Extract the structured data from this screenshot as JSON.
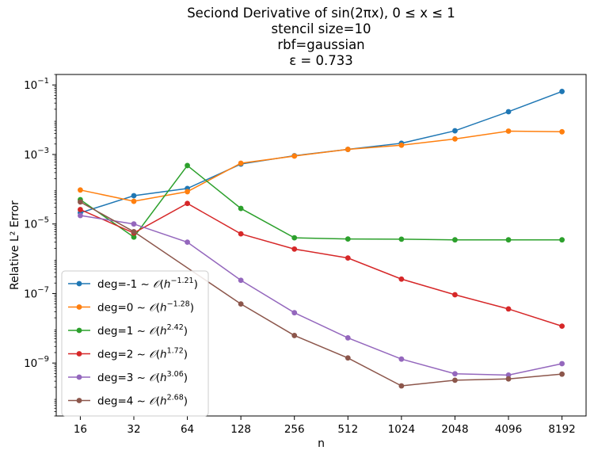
{
  "chart_data": {
    "type": "line",
    "title_lines": [
      "Seciond Derivative of sin(2πx), 0 ≤ x ≤ 1",
      "stencil size=10",
      "rbf=gaussian",
      "ε = 0.733"
    ],
    "xlabel": "n",
    "ylabel": "Relative L² Error",
    "x_scale": "log2",
    "y_scale": "log10",
    "x": [
      16,
      32,
      64,
      128,
      256,
      512,
      1024,
      2048,
      4096,
      8192
    ],
    "x_tick_labels": [
      "16",
      "32",
      "64",
      "128",
      "256",
      "512",
      "1024",
      "2048",
      "4096",
      "8192"
    ],
    "y_ticks": [
      {
        "value": 1e-09,
        "base": "10",
        "exp": "−9"
      },
      {
        "value": 1e-07,
        "base": "10",
        "exp": "−7"
      },
      {
        "value": 1e-05,
        "base": "10",
        "exp": "−5"
      },
      {
        "value": 0.001,
        "base": "10",
        "exp": "−3"
      },
      {
        "value": 0.1,
        "base": "10",
        "exp": "−1"
      }
    ],
    "ylim": [
      3e-11,
      0.2
    ],
    "grid": false,
    "legend_position": "lower-left",
    "series": [
      {
        "name": "deg=-1",
        "rate_base": "h",
        "rate_exp": "−1.21",
        "color": "#1f77b4",
        "values": [
          2.1e-05,
          6.5e-05,
          0.000105,
          0.00053,
          0.00092,
          0.0014,
          0.0021,
          0.0048,
          0.017,
          0.065
        ]
      },
      {
        "name": "deg=0",
        "rate_base": "h",
        "rate_exp": "−1.28",
        "color": "#ff7f0e",
        "values": [
          9.5e-05,
          4.5e-05,
          8.5e-05,
          0.00056,
          0.0009,
          0.0014,
          0.00185,
          0.0028,
          0.0047,
          0.0045
        ]
      },
      {
        "name": "deg=1",
        "rate_base": "h",
        "rate_exp": "2.42",
        "color": "#2ca02c",
        "values": [
          5e-05,
          4.2e-06,
          0.00048,
          2.8e-05,
          4e-06,
          3.7e-06,
          3.65e-06,
          3.5e-06,
          3.5e-06,
          3.5e-06
        ]
      },
      {
        "name": "deg=2",
        "rate_base": "h",
        "rate_exp": "1.72",
        "color": "#d62728",
        "values": [
          2.6e-05,
          5.5e-06,
          3.9e-05,
          5.2e-06,
          1.9e-06,
          1.05e-06,
          2.6e-07,
          9.2e-08,
          3.6e-08,
          1.15e-08
        ]
      },
      {
        "name": "deg=3",
        "rate_base": "h",
        "rate_exp": "3.06",
        "color": "#9467bd",
        "values": [
          1.75e-05,
          1e-05,
          3e-06,
          2.4e-07,
          2.8e-08,
          5.3e-09,
          1.3e-09,
          4.9e-10,
          4.5e-10,
          9.6e-10
        ]
      },
      {
        "name": "deg=4",
        "rate_base": "h",
        "rate_exp": "2.68",
        "color": "#8c564b",
        "values": [
          4.3e-05,
          6e-06,
          null,
          5e-08,
          6.2e-09,
          1.4e-09,
          2.2e-10,
          3.2e-10,
          3.5e-10,
          4.8e-10
        ]
      }
    ]
  }
}
